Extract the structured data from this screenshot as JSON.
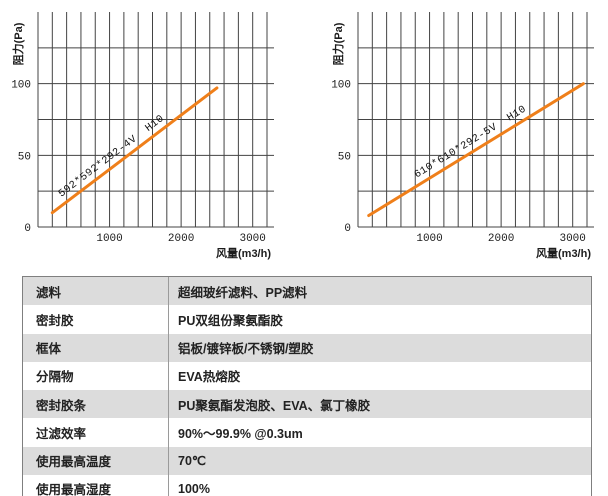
{
  "chart_data": [
    {
      "type": "line",
      "title": "",
      "xlabel": "风量(m3/h)",
      "ylabel": "阻力(Pa)",
      "xlim": [
        0,
        3200
      ],
      "ylim": [
        0,
        150
      ],
      "x_ticks": [
        1000,
        2000,
        3000
      ],
      "y_ticks": [
        0,
        50,
        100
      ],
      "x_grid_step": 200,
      "y_grid_step": 25,
      "grid": true,
      "legend_position": "on-line",
      "series": [
        {
          "name": "592*592*292-4V  H10",
          "points": [
            [
              200,
              10
            ],
            [
              2500,
              97
            ]
          ],
          "color": "#ef7f1a"
        }
      ],
      "label_offset_frac": 0.08
    },
    {
      "type": "line",
      "title": "",
      "xlabel": "风量(m3/h)",
      "ylabel": "阻力(Pa)",
      "xlim": [
        0,
        3200
      ],
      "ylim": [
        0,
        150
      ],
      "x_ticks": [
        1000,
        2000,
        3000
      ],
      "y_ticks": [
        0,
        50,
        100
      ],
      "x_grid_step": 200,
      "y_grid_step": 25,
      "grid": true,
      "legend_position": "on-line",
      "series": [
        {
          "name": "610*610*292-5V  H10",
          "points": [
            [
              150,
              8
            ],
            [
              3150,
              100
            ]
          ],
          "color": "#ef7f1a"
        }
      ],
      "label_offset_frac": 0.24
    }
  ],
  "table": {
    "rows": [
      {
        "label": "滤料",
        "value": "超细玻纤滤料、PP滤料"
      },
      {
        "label": "密封胶",
        "value": "PU双组份聚氨酯胶"
      },
      {
        "label": "框体",
        "value": "铝板/镀锌板/不锈钢/塑胶"
      },
      {
        "label": "分隔物",
        "value": "EVA热熔胶"
      },
      {
        "label": "密封胶条",
        "value": "PU聚氨酯发泡胶、EVA、氯丁橡胶"
      },
      {
        "label": "过滤效率",
        "value": "90%～99.9% @0.3um"
      },
      {
        "label": "使用最高温度",
        "value": "70℃"
      },
      {
        "label": "使用最高湿度",
        "value": "100%"
      }
    ]
  },
  "colors": {
    "line_orange": "#ef7f1a",
    "grid": "#434343",
    "table_stripe": "#dcdcdc",
    "table_border": "#7f7f7f",
    "text": "#222222"
  }
}
